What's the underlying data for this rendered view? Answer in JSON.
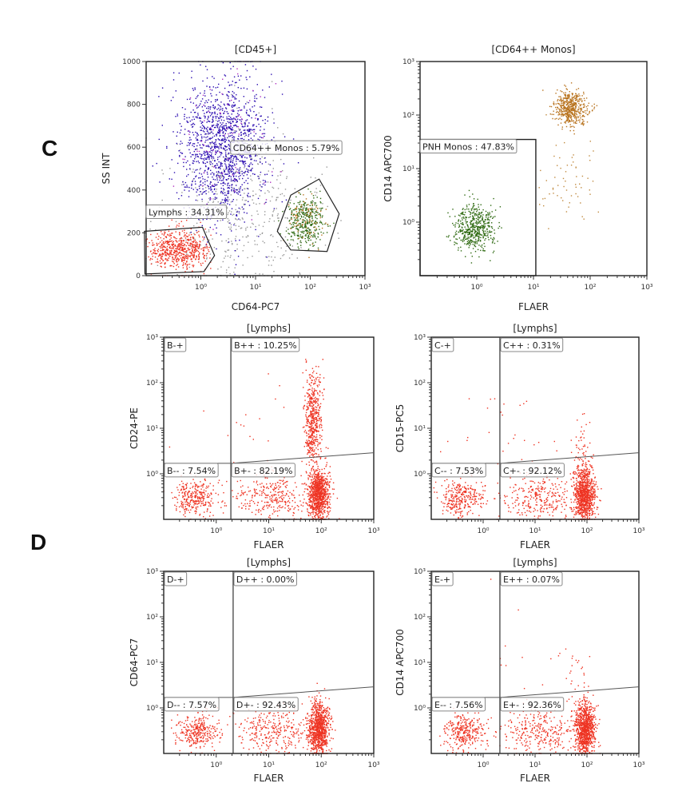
{
  "panel_letters": [
    "C",
    "D"
  ],
  "colors": {
    "gray": "#9a9a9a",
    "blue": "#2a0cb0",
    "magenta": "#b030c0",
    "red": "#ee3322",
    "green": "#2f6a12",
    "orange": "#b8731e",
    "tail": "#c08a40"
  },
  "chart_data": [
    {
      "type": "scatter",
      "title": "[CD45+]",
      "xlabel": "CD64-PC7",
      "ylabel": "SS INT",
      "xscale": "log",
      "xlim": [
        0.1,
        1000
      ],
      "yscale": "linear",
      "ylim": [
        0,
        1000
      ],
      "x_ticks": [
        {
          "value": 1,
          "label": "10⁰"
        },
        {
          "value": 10,
          "label": "10¹"
        },
        {
          "value": 100,
          "label": "10²"
        },
        {
          "value": 1000,
          "label": "10³"
        }
      ],
      "y_ticks": [
        {
          "value": 0,
          "label": "0"
        },
        {
          "value": 200,
          "label": "200"
        },
        {
          "value": 400,
          "label": "400"
        },
        {
          "value": 600,
          "label": "600"
        },
        {
          "value": 800,
          "label": "800"
        },
        {
          "value": 1000,
          "label": "1000"
        }
      ],
      "gates": [
        {
          "type": "polygon",
          "label": "Lymphs : 34.31%",
          "points": [
            [
              0.093,
              207
            ],
            [
              1.07,
              226
            ],
            [
              1.78,
              94
            ],
            [
              1.14,
              19
            ],
            [
              0.095,
              8
            ]
          ],
          "label_at": [
            0.1,
            330
          ]
        },
        {
          "type": "polygon",
          "label": "CD64++ Monos : 5.79%",
          "points": [
            [
              44,
              376
            ],
            [
              145,
              451
            ],
            [
              338,
              289
            ],
            [
              203,
              113
            ],
            [
              44,
              120
            ],
            [
              25,
              207
            ]
          ],
          "label_at": [
            3.5,
            630
          ]
        }
      ],
      "populations": [
        {
          "color": "gray",
          "n": 500,
          "x": 5,
          "sx": 0.7,
          "y": 300,
          "sy": 200
        },
        {
          "color": "blue",
          "n": 1400,
          "x": 2.5,
          "sx": 0.4,
          "y": 600,
          "sy": 170
        },
        {
          "color": "magenta",
          "n": 80,
          "x": 2.5,
          "sx": 0.45,
          "y": 620,
          "sy": 190
        },
        {
          "color": "red",
          "n": 600,
          "x": 0.4,
          "sx": 0.28,
          "y": 120,
          "sy": 45
        },
        {
          "color": "green",
          "n": 350,
          "x": 85,
          "sx": 0.17,
          "y": 250,
          "sy": 55
        },
        {
          "color": "orange",
          "n": 80,
          "x": 85,
          "sx": 0.17,
          "y": 250,
          "sy": 60
        }
      ]
    },
    {
      "type": "scatter",
      "title": "[CD64++ Monos]",
      "xlabel": "FLAER",
      "ylabel": "CD14 APC700",
      "xscale": "log",
      "xlim": [
        0.1,
        1000
      ],
      "yscale": "log",
      "ylim": [
        0.1,
        1000
      ],
      "x_ticks": [
        {
          "value": 1,
          "label": "10⁰"
        },
        {
          "value": 10,
          "label": "10¹"
        },
        {
          "value": 100,
          "label": "10²"
        },
        {
          "value": 1000,
          "label": "10³"
        }
      ],
      "y_ticks": [
        {
          "value": 1,
          "label": "10⁰"
        },
        {
          "value": 10,
          "label": "10¹"
        },
        {
          "value": 100,
          "label": "10²"
        },
        {
          "value": 1000,
          "label": "10³"
        }
      ],
      "gates": [
        {
          "type": "rect",
          "label": "PNH Monos : 47.83%",
          "x": [
            0.1,
            11
          ],
          "y": [
            0.1,
            35
          ]
        }
      ],
      "populations": [
        {
          "color": "green",
          "n": 500,
          "x": 0.9,
          "sx": 0.18,
          "y": 0.8,
          "sy": 0.22
        },
        {
          "color": "orange",
          "n": 500,
          "x": 45,
          "sx": 0.15,
          "y": 130,
          "sy": 0.15
        },
        {
          "color": "tail",
          "n": 60,
          "x": 40,
          "sx": 0.25,
          "y": 5,
          "sy": 0.5
        }
      ]
    },
    {
      "type": "scatter",
      "title": "[Lymphs]",
      "xlabel": "FLAER",
      "ylabel": "CD24-PE",
      "xscale": "log",
      "xlim": [
        0.1,
        1000
      ],
      "yscale": "log",
      "ylim": [
        0.1,
        1000
      ],
      "x_ticks": [
        {
          "value": 1,
          "label": "10⁰"
        },
        {
          "value": 10,
          "label": "10¹"
        },
        {
          "value": 100,
          "label": "10²"
        },
        {
          "value": 1000,
          "label": "10³"
        }
      ],
      "y_ticks": [
        {
          "value": 1,
          "label": "10⁰"
        },
        {
          "value": 10,
          "label": "10¹"
        },
        {
          "value": 100,
          "label": "10²"
        },
        {
          "value": 1000,
          "label": "10³"
        }
      ],
      "gates": [
        {
          "type": "quadrant",
          "x_split": 1.9,
          "y_split_left": 1.7,
          "y_split_right": [
            1.7,
            2.9
          ],
          "labels": {
            "neg_pos": "B-+",
            "pos_pos": "B++ : 10.25%",
            "neg_neg": "B-- : 7.54%",
            "pos_neg": "B+- : 82.19%"
          }
        }
      ],
      "populations": [
        {
          "color": "red",
          "n": 300,
          "x": 0.4,
          "sx": 0.2,
          "y": 0.3,
          "sy": 0.2
        },
        {
          "color": "red",
          "n": 300,
          "x": 12,
          "sx": 0.35,
          "y": 0.3,
          "sy": 0.25
        },
        {
          "color": "red",
          "n": 900,
          "x": 90,
          "sx": 0.1,
          "y": 0.35,
          "sy": 0.3
        },
        {
          "color": "red",
          "n": 500,
          "x": 70,
          "sx": 0.08,
          "y": 15,
          "sy": 0.5
        },
        {
          "color": "red",
          "n": 20,
          "x": 3,
          "sx": 0.6,
          "y": 10,
          "sy": 0.7
        }
      ]
    },
    {
      "type": "scatter",
      "title": "[Lymphs]",
      "xlabel": "FLAER",
      "ylabel": "CD15-PC5",
      "xscale": "log",
      "xlim": [
        0.1,
        1000
      ],
      "yscale": "log",
      "ylim": [
        0.1,
        1000
      ],
      "x_ticks": [
        {
          "value": 1,
          "label": "10⁰"
        },
        {
          "value": 10,
          "label": "10¹"
        },
        {
          "value": 100,
          "label": "10²"
        },
        {
          "value": 1000,
          "label": "10³"
        }
      ],
      "y_ticks": [
        {
          "value": 1,
          "label": "10⁰"
        },
        {
          "value": 10,
          "label": "10¹"
        },
        {
          "value": 100,
          "label": "10²"
        },
        {
          "value": 1000,
          "label": "10³"
        }
      ],
      "gates": [
        {
          "type": "quadrant",
          "x_split": 2.1,
          "y_split_left": 1.7,
          "y_split_right": [
            1.7,
            2.9
          ],
          "labels": {
            "neg_pos": "C-+",
            "pos_pos": "C++ : 0.31%",
            "neg_neg": "C-- : 7.53%",
            "pos_neg": "C+- : 92.12%"
          }
        }
      ],
      "populations": [
        {
          "color": "red",
          "n": 300,
          "x": 0.4,
          "sx": 0.2,
          "y": 0.3,
          "sy": 0.2
        },
        {
          "color": "red",
          "n": 300,
          "x": 12,
          "sx": 0.35,
          "y": 0.3,
          "sy": 0.25
        },
        {
          "color": "red",
          "n": 900,
          "x": 90,
          "sx": 0.1,
          "y": 0.35,
          "sy": 0.3
        },
        {
          "color": "red",
          "n": 60,
          "x": 80,
          "sx": 0.1,
          "y": 3,
          "sy": 0.35
        },
        {
          "color": "red",
          "n": 30,
          "x": 5,
          "sx": 0.7,
          "y": 10,
          "sy": 0.6
        }
      ]
    },
    {
      "type": "scatter",
      "title": "[Lymphs]",
      "xlabel": "FLAER",
      "ylabel": "CD64-PC7",
      "xscale": "log",
      "xlim": [
        0.1,
        1000
      ],
      "yscale": "log",
      "ylim": [
        0.1,
        1000
      ],
      "x_ticks": [
        {
          "value": 1,
          "label": "10⁰"
        },
        {
          "value": 10,
          "label": "10¹"
        },
        {
          "value": 100,
          "label": "10²"
        },
        {
          "value": 1000,
          "label": "10³"
        }
      ],
      "y_ticks": [
        {
          "value": 1,
          "label": "10⁰"
        },
        {
          "value": 10,
          "label": "10¹"
        },
        {
          "value": 100,
          "label": "10²"
        },
        {
          "value": 1000,
          "label": "10³"
        }
      ],
      "gates": [
        {
          "type": "quadrant",
          "x_split": 2.1,
          "y_split_left": 1.7,
          "y_split_right": [
            1.7,
            2.9
          ],
          "labels": {
            "neg_pos": "D-+",
            "pos_pos": "D++ : 0.00%",
            "neg_neg": "D-- : 7.57%",
            "pos_neg": "D+- : 92.43%"
          }
        }
      ],
      "populations": [
        {
          "color": "red",
          "n": 300,
          "x": 0.45,
          "sx": 0.2,
          "y": 0.3,
          "sy": 0.2
        },
        {
          "color": "red",
          "n": 300,
          "x": 12,
          "sx": 0.35,
          "y": 0.3,
          "sy": 0.25
        },
        {
          "color": "red",
          "n": 900,
          "x": 90,
          "sx": 0.1,
          "y": 0.35,
          "sy": 0.3
        }
      ]
    },
    {
      "type": "scatter",
      "title": "[Lymphs]",
      "xlabel": "FLAER",
      "ylabel": "CD14 APC700",
      "xscale": "log",
      "xlim": [
        0.1,
        1000
      ],
      "yscale": "log",
      "ylim": [
        0.1,
        1000
      ],
      "x_ticks": [
        {
          "value": 1,
          "label": "10⁰"
        },
        {
          "value": 10,
          "label": "10¹"
        },
        {
          "value": 100,
          "label": "10²"
        },
        {
          "value": 1000,
          "label": "10³"
        }
      ],
      "y_ticks": [
        {
          "value": 1,
          "label": "10⁰"
        },
        {
          "value": 10,
          "label": "10¹"
        },
        {
          "value": 100,
          "label": "10²"
        },
        {
          "value": 1000,
          "label": "10³"
        }
      ],
      "gates": [
        {
          "type": "quadrant",
          "x_split": 2.1,
          "y_split_left": 1.7,
          "y_split_right": [
            1.7,
            2.9
          ],
          "labels": {
            "neg_pos": "E-+",
            "pos_pos": "E++ : 0.07%",
            "neg_neg": "E-- : 7.56%",
            "pos_neg": "E+- : 92.36%"
          }
        }
      ],
      "populations": [
        {
          "color": "red",
          "n": 300,
          "x": 0.45,
          "sx": 0.2,
          "y": 0.3,
          "sy": 0.2
        },
        {
          "color": "red",
          "n": 300,
          "x": 12,
          "sx": 0.35,
          "y": 0.3,
          "sy": 0.25
        },
        {
          "color": "red",
          "n": 900,
          "x": 90,
          "sx": 0.1,
          "y": 0.35,
          "sy": 0.3
        },
        {
          "color": "red",
          "n": 25,
          "x": 60,
          "sx": 0.15,
          "y": 5,
          "sy": 0.4
        },
        {
          "color": "red",
          "n": 10,
          "x": 3,
          "sx": 0.6,
          "y": 20,
          "sy": 0.7
        }
      ]
    }
  ]
}
